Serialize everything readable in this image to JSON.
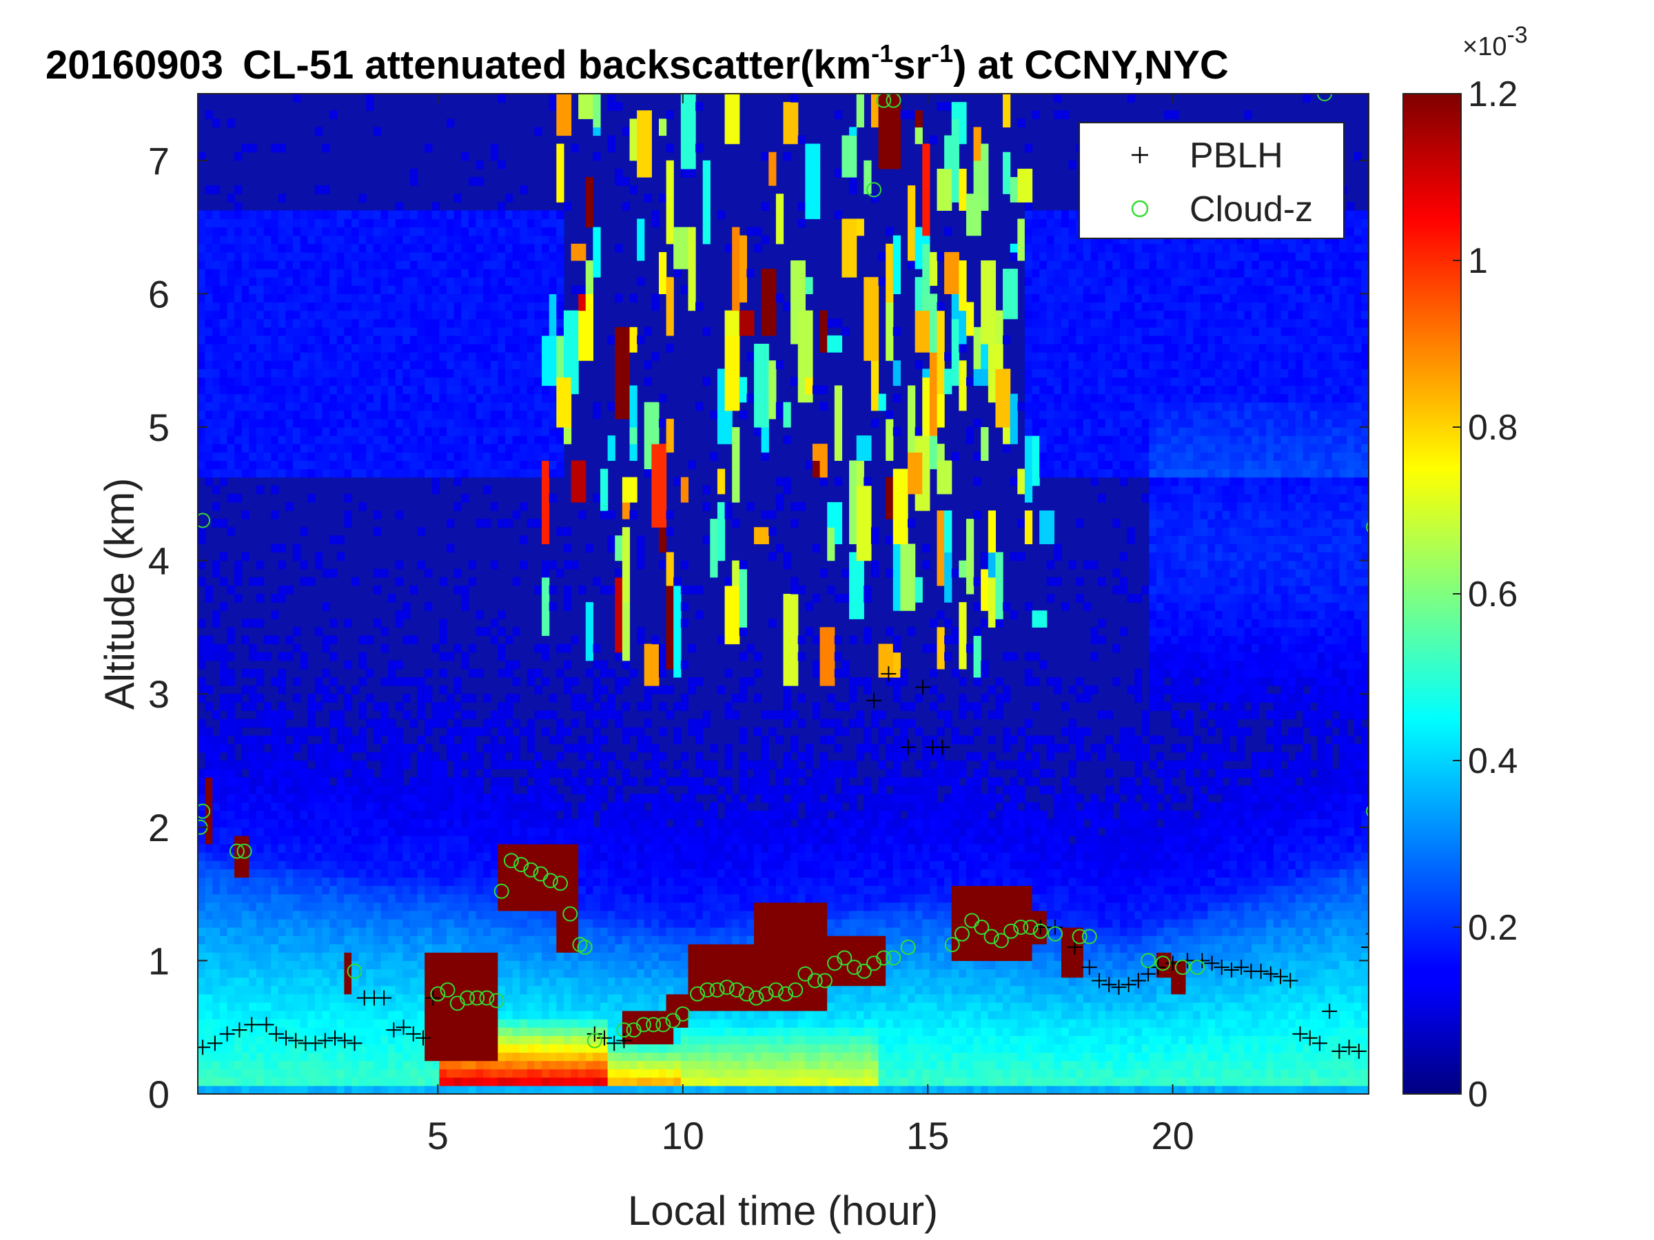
{
  "chart_data": {
    "type": "heatmap",
    "title": {
      "date": "20160903",
      "prefix": "CL-51 attenuated backscatter(km",
      "sup1": "-1",
      "mid": "sr",
      "sup2": "-1",
      "suffix": ") at CCNY,NYC"
    },
    "xlabel": "Local time (hour)",
    "ylabel": "Altitude (km)",
    "xlim": [
      0.1,
      24
    ],
    "ylim": [
      0,
      7.5
    ],
    "xticks": [
      5,
      10,
      15,
      20
    ],
    "yticks": [
      0,
      1,
      2,
      3,
      4,
      5,
      6,
      7
    ],
    "colorbar": {
      "colormap": "jet",
      "clim": [
        0,
        1.2
      ],
      "ticks": [
        0,
        0.2,
        0.4,
        0.6,
        0.8,
        1,
        1.2
      ],
      "exponent": "-3"
    },
    "legend": {
      "position": "top-right",
      "entries": [
        {
          "label": "PBLH",
          "marker": "+",
          "color": "#000000"
        },
        {
          "label": "Cloud-z",
          "marker": "o",
          "color": "#33dd33"
        }
      ]
    },
    "series": [
      {
        "name": "PBLH",
        "points": [
          [
            0.2,
            0.35
          ],
          [
            0.45,
            0.38
          ],
          [
            0.7,
            0.45
          ],
          [
            0.95,
            0.48
          ],
          [
            1.2,
            0.52
          ],
          [
            1.5,
            0.52
          ],
          [
            1.7,
            0.45
          ],
          [
            1.9,
            0.42
          ],
          [
            2.1,
            0.4
          ],
          [
            2.3,
            0.38
          ],
          [
            2.5,
            0.38
          ],
          [
            2.7,
            0.4
          ],
          [
            2.9,
            0.42
          ],
          [
            3.1,
            0.4
          ],
          [
            3.3,
            0.38
          ],
          [
            3.5,
            0.72
          ],
          [
            3.7,
            0.72
          ],
          [
            3.9,
            0.72
          ],
          [
            4.1,
            0.48
          ],
          [
            4.3,
            0.5
          ],
          [
            4.5,
            0.45
          ],
          [
            4.7,
            0.42
          ],
          [
            4.9,
            0.72
          ],
          [
            8.2,
            0.45
          ],
          [
            8.4,
            0.42
          ],
          [
            8.6,
            0.38
          ],
          [
            8.8,
            0.4
          ],
          [
            13.9,
            2.95
          ],
          [
            14.2,
            3.15
          ],
          [
            14.6,
            2.6
          ],
          [
            14.9,
            3.05
          ],
          [
            15.1,
            2.6
          ],
          [
            15.3,
            2.6
          ],
          [
            17.3,
            1.25
          ],
          [
            17.6,
            1.25
          ],
          [
            18,
            1.1
          ],
          [
            18.3,
            0.95
          ],
          [
            18.5,
            0.85
          ],
          [
            18.7,
            0.82
          ],
          [
            18.9,
            0.8
          ],
          [
            19.1,
            0.82
          ],
          [
            19.3,
            0.85
          ],
          [
            19.5,
            0.9
          ],
          [
            19.7,
            0.95
          ],
          [
            20,
            0.98
          ],
          [
            20.3,
            1.0
          ],
          [
            20.6,
            1.0
          ],
          [
            20.8,
            0.98
          ],
          [
            21,
            0.95
          ],
          [
            21.2,
            0.93
          ],
          [
            21.4,
            0.95
          ],
          [
            21.6,
            0.92
          ],
          [
            21.8,
            0.92
          ],
          [
            22,
            0.9
          ],
          [
            22.2,
            0.88
          ],
          [
            22.4,
            0.85
          ],
          [
            22.6,
            0.45
          ],
          [
            22.8,
            0.42
          ],
          [
            23,
            0.38
          ],
          [
            23.2,
            0.62
          ],
          [
            23.4,
            0.32
          ],
          [
            23.6,
            0.35
          ],
          [
            23.8,
            0.32
          ],
          [
            24,
            1.1
          ],
          [
            24.1,
            1.2
          ],
          [
            24.2,
            1.3
          ]
        ]
      },
      {
        "name": "Cloud-z",
        "points": [
          [
            0.2,
            2.12
          ],
          [
            0.2,
            4.3
          ],
          [
            0.15,
            2.0
          ],
          [
            0.9,
            1.82
          ],
          [
            1.05,
            1.82
          ],
          [
            3.3,
            0.92
          ],
          [
            5.0,
            0.75
          ],
          [
            5.2,
            0.78
          ],
          [
            5.4,
            0.68
          ],
          [
            5.6,
            0.72
          ],
          [
            5.8,
            0.72
          ],
          [
            6.0,
            0.72
          ],
          [
            6.2,
            0.7
          ],
          [
            6.3,
            1.52
          ],
          [
            6.5,
            1.75
          ],
          [
            6.7,
            1.72
          ],
          [
            6.9,
            1.68
          ],
          [
            7.1,
            1.65
          ],
          [
            7.3,
            1.6
          ],
          [
            7.5,
            1.58
          ],
          [
            7.7,
            1.35
          ],
          [
            7.9,
            1.12
          ],
          [
            8.0,
            1.1
          ],
          [
            8.2,
            0.4
          ],
          [
            8.8,
            0.48
          ],
          [
            9.0,
            0.48
          ],
          [
            9.2,
            0.52
          ],
          [
            9.4,
            0.52
          ],
          [
            9.6,
            0.52
          ],
          [
            9.8,
            0.55
          ],
          [
            10.0,
            0.6
          ],
          [
            10.3,
            0.75
          ],
          [
            10.5,
            0.78
          ],
          [
            10.7,
            0.78
          ],
          [
            10.9,
            0.8
          ],
          [
            11.1,
            0.78
          ],
          [
            11.3,
            0.75
          ],
          [
            11.5,
            0.72
          ],
          [
            11.7,
            0.75
          ],
          [
            11.9,
            0.78
          ],
          [
            12.1,
            0.75
          ],
          [
            12.3,
            0.78
          ],
          [
            12.5,
            0.9
          ],
          [
            12.7,
            0.85
          ],
          [
            12.9,
            0.85
          ],
          [
            13.1,
            0.98
          ],
          [
            13.3,
            1.02
          ],
          [
            13.5,
            0.95
          ],
          [
            13.7,
            0.92
          ],
          [
            13.9,
            0.98
          ],
          [
            14.1,
            1.02
          ],
          [
            14.3,
            1.02
          ],
          [
            13.9,
            6.78
          ],
          [
            14.1,
            7.45
          ],
          [
            14.3,
            7.45
          ],
          [
            14.6,
            1.1
          ],
          [
            15.5,
            1.12
          ],
          [
            15.7,
            1.2
          ],
          [
            15.9,
            1.3
          ],
          [
            16.1,
            1.25
          ],
          [
            16.3,
            1.18
          ],
          [
            16.5,
            1.15
          ],
          [
            16.7,
            1.22
          ],
          [
            16.9,
            1.25
          ],
          [
            17.1,
            1.25
          ],
          [
            17.3,
            1.22
          ],
          [
            17.6,
            1.2
          ],
          [
            18.1,
            1.18
          ],
          [
            18.3,
            1.18
          ],
          [
            19.5,
            1.0
          ],
          [
            19.8,
            0.98
          ],
          [
            20.2,
            0.95
          ],
          [
            20.5,
            0.95
          ],
          [
            23.1,
            7.5
          ],
          [
            24.1,
            4.25
          ],
          [
            24.1,
            2.12
          ]
        ]
      }
    ]
  }
}
